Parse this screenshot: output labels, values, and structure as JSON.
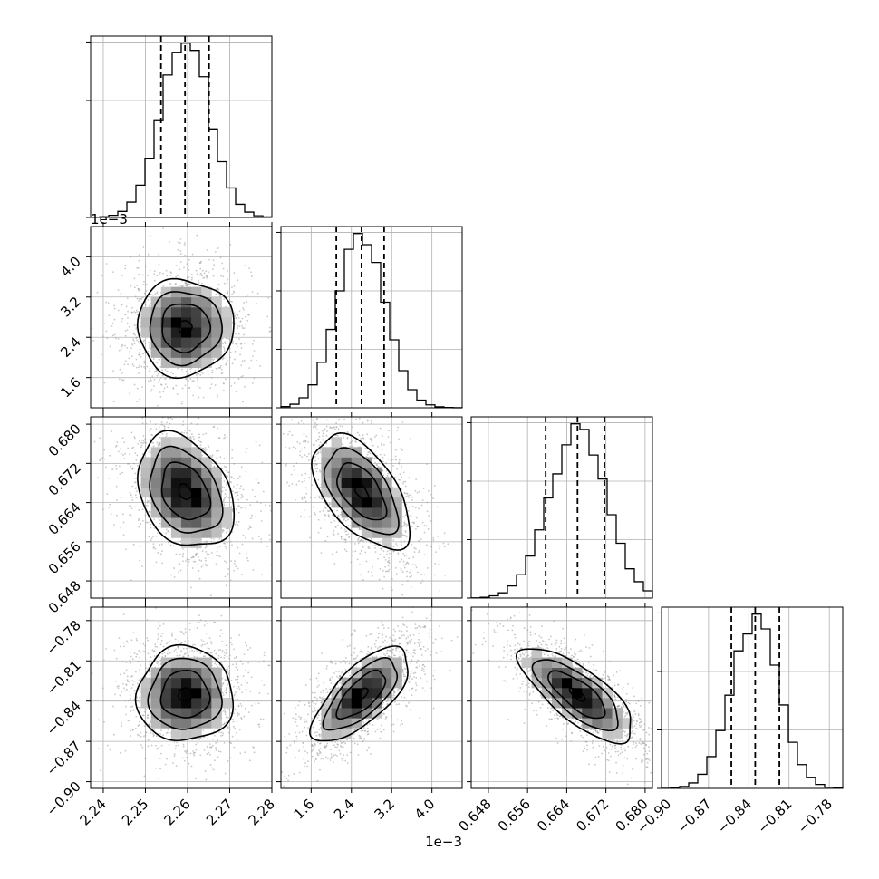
{
  "chart_data": {
    "type": "corner",
    "title": "",
    "parameters": [
      {
        "index": 0,
        "label": "",
        "range": [
          2.237,
          2.28
        ],
        "ticks": [
          2.24,
          2.25,
          2.26,
          2.27,
          2.28
        ],
        "tick_labels": [
          "2.24",
          "2.25",
          "2.26",
          "2.27",
          "2.28"
        ],
        "offset_text": "",
        "quantiles": [
          2.2537,
          2.2594,
          2.2651
        ],
        "mean": 2.2594,
        "sd": 0.0057
      },
      {
        "index": 1,
        "label": "",
        "range": [
          1.0,
          4.6
        ],
        "ticks": [
          1.6,
          2.4,
          3.2,
          4.0
        ],
        "tick_labels": [
          "1.6",
          "2.4",
          "3.2",
          "4.0"
        ],
        "offset_text": "1e−3",
        "quantiles": [
          2.1,
          2.6,
          3.05
        ],
        "mean": 2.6,
        "sd": 0.48
      },
      {
        "index": 2,
        "label": "",
        "range": [
          0.6445,
          0.6815
        ],
        "ticks": [
          0.648,
          0.656,
          0.664,
          0.672,
          0.68
        ],
        "tick_labels": [
          "0.648",
          "0.656",
          "0.664",
          "0.672",
          "0.680"
        ],
        "offset_text": "",
        "quantiles": [
          0.6597,
          0.6662,
          0.6717
        ],
        "mean": 0.6662,
        "sd": 0.0058
      },
      {
        "index": 3,
        "label": "",
        "range": [
          -0.905,
          -0.77
        ],
        "ticks": [
          -0.9,
          -0.87,
          -0.84,
          -0.81,
          -0.78
        ],
        "tick_labels": [
          "−0.90",
          "−0.87",
          "−0.84",
          "−0.81",
          "−0.78"
        ],
        "offset_text": "",
        "quantiles": [
          -0.853,
          -0.8352,
          -0.8172
        ],
        "mean": -0.8352,
        "sd": 0.0176
      }
    ],
    "correlations": {
      "0-1": 0.0,
      "0-2": -0.3,
      "0-3": 0.0,
      "1-2": -0.55,
      "1-3": 0.7,
      "2-3": -0.75
    },
    "histogram_bins": 20,
    "grid": true,
    "quantile_style": "dashed",
    "colors": {
      "points": "#9a9a9a",
      "density_high": "#000000",
      "density_low": "#ffffff",
      "lines": "#000000"
    }
  }
}
